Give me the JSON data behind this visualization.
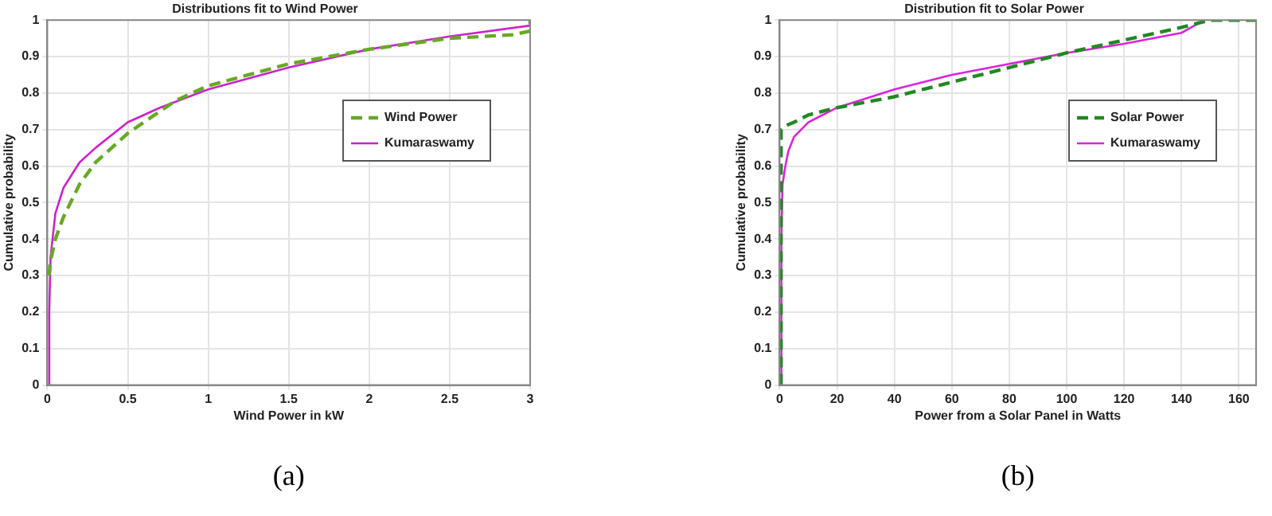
{
  "chart_data": [
    {
      "type": "line",
      "title": "Distributions fit to Wind Power",
      "xlabel": "Wind Power in kW",
      "ylabel": "Cumulative probability",
      "annotations": [
        "(a)"
      ],
      "xlim": [
        0,
        3
      ],
      "xticks": [
        0,
        0.5,
        1,
        1.5,
        2,
        2.5,
        3
      ],
      "ylim": [
        0,
        1
      ],
      "yticks": [
        0,
        0.1,
        0.2,
        0.3,
        0.4,
        0.5,
        0.6,
        0.7,
        0.8,
        0.9,
        1
      ],
      "grid": true,
      "legend": "right",
      "marker": "none",
      "series": [
        {
          "name": "Wind Power",
          "color": "#66aa22",
          "line_style": "dashed",
          "x": [
            0.01,
            0.02,
            0.05,
            0.1,
            0.2,
            0.3,
            0.5,
            0.7,
            0.8,
            1,
            1.5,
            2,
            2.5,
            2.9,
            3,
            3
          ],
          "values": [
            0.3,
            0.34,
            0.4,
            0.46,
            0.55,
            0.61,
            0.69,
            0.75,
            0.78,
            0.82,
            0.88,
            0.92,
            0.95,
            0.96,
            0.97,
            1
          ]
        },
        {
          "name": "Kumaraswamy",
          "color": "#cc22cc",
          "line_style": "solid",
          "x": [
            0.01,
            0.012,
            0.02,
            0.05,
            0.1,
            0.2,
            0.3,
            0.5,
            0.7,
            1,
            1.5,
            2,
            2.5,
            3
          ],
          "values": [
            0,
            0.2,
            0.35,
            0.47,
            0.54,
            0.61,
            0.65,
            0.72,
            0.76,
            0.81,
            0.87,
            0.92,
            0.955,
            0.985
          ]
        }
      ]
    },
    {
      "type": "line",
      "title": "Distribution fit to Solar Power",
      "xlabel": "Power from a Solar Panel in Watts",
      "ylabel": "Cumulative probability",
      "annotations": [
        "(b)"
      ],
      "xlim": [
        0,
        166
      ],
      "xticks": [
        0,
        20,
        40,
        60,
        80,
        100,
        120,
        140,
        160
      ],
      "ylim": [
        0,
        1
      ],
      "yticks": [
        0,
        0.1,
        0.2,
        0.3,
        0.4,
        0.5,
        0.6,
        0.7,
        0.8,
        0.9,
        1
      ],
      "grid": true,
      "legend": "right",
      "marker": "none",
      "series": [
        {
          "name": "Solar Power",
          "color": "#228822",
          "line_style": "dashed",
          "x": [
            0.5,
            0.5,
            0.5,
            2,
            5,
            10,
            20,
            40,
            60,
            80,
            100,
            120,
            140,
            150,
            166
          ],
          "values": [
            0,
            0.55,
            0.7,
            0.71,
            0.72,
            0.74,
            0.76,
            0.79,
            0.83,
            0.87,
            0.91,
            0.945,
            0.98,
            1,
            1
          ]
        },
        {
          "name": "Kumaraswamy",
          "color": "#dd22dd",
          "line_style": "solid",
          "x": [
            0.5,
            0.6,
            1,
            2,
            3,
            5,
            10,
            20,
            40,
            60,
            80,
            100,
            120,
            140,
            148
          ],
          "values": [
            0,
            0.4,
            0.55,
            0.6,
            0.64,
            0.68,
            0.72,
            0.76,
            0.81,
            0.85,
            0.88,
            0.91,
            0.935,
            0.965,
            1
          ]
        }
      ]
    }
  ]
}
